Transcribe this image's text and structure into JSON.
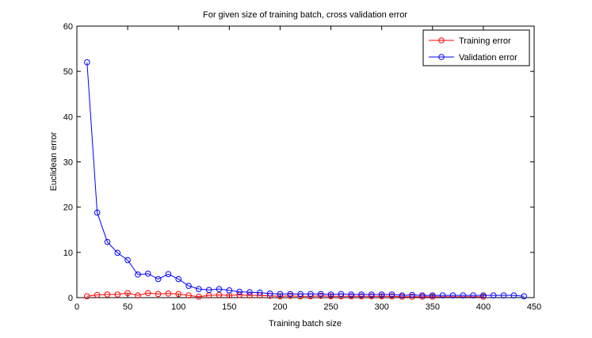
{
  "chart_data": {
    "type": "line",
    "title": "For given size of training batch, cross validation error",
    "xlabel": "Training batch size",
    "ylabel": "Euclidean error",
    "xlim": [
      0,
      450
    ],
    "ylim": [
      0,
      60
    ],
    "xticks": [
      0,
      50,
      100,
      150,
      200,
      250,
      300,
      350,
      400,
      450
    ],
    "yticks": [
      0,
      10,
      20,
      30,
      40,
      50,
      60
    ],
    "grid": false,
    "legend_position": "top-right",
    "series": [
      {
        "name": "Training error",
        "color": "#ff0000",
        "marker": "circle",
        "x": [
          10,
          20,
          30,
          40,
          50,
          60,
          70,
          80,
          90,
          100,
          110,
          120,
          130,
          140,
          150,
          160,
          170,
          180,
          190,
          200,
          210,
          220,
          230,
          240,
          250,
          260,
          270,
          280,
          290,
          300,
          310,
          320,
          330,
          340,
          350,
          400
        ],
        "y": [
          0.3,
          0.6,
          0.7,
          0.7,
          1.0,
          0.5,
          1.0,
          0.8,
          0.9,
          0.8,
          0.5,
          0.2,
          0.5,
          0.6,
          0.5,
          0.6,
          0.5,
          0.5,
          0.4,
          0.3,
          0.4,
          0.3,
          0.3,
          0.4,
          0.3,
          0.3,
          0.3,
          0.3,
          0.3,
          0.3,
          0.3,
          0.2,
          0.2,
          0.2,
          0.2,
          0.2
        ]
      },
      {
        "name": "Validation error",
        "color": "#0000ff",
        "marker": "circle",
        "x": [
          10,
          20,
          30,
          40,
          50,
          60,
          70,
          80,
          90,
          100,
          110,
          120,
          130,
          140,
          150,
          160,
          170,
          180,
          190,
          200,
          210,
          220,
          230,
          240,
          250,
          260,
          270,
          280,
          290,
          300,
          310,
          320,
          330,
          340,
          350,
          360,
          370,
          380,
          390,
          400,
          410,
          420,
          430,
          440
        ],
        "y": [
          52.0,
          18.8,
          12.3,
          9.9,
          8.3,
          5.1,
          5.3,
          4.1,
          5.2,
          4.1,
          2.6,
          1.9,
          1.7,
          1.9,
          1.6,
          1.3,
          1.2,
          1.1,
          0.9,
          0.8,
          0.8,
          0.8,
          0.8,
          0.8,
          0.7,
          0.8,
          0.7,
          0.7,
          0.7,
          0.7,
          0.7,
          0.5,
          0.6,
          0.5,
          0.5,
          0.5,
          0.5,
          0.5,
          0.5,
          0.5,
          0.5,
          0.5,
          0.5,
          0.3
        ]
      }
    ]
  }
}
